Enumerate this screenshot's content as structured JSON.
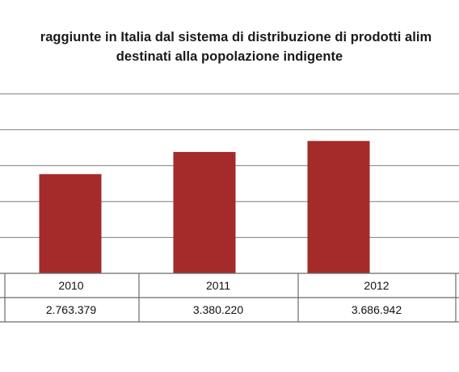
{
  "chart_data": {
    "type": "bar",
    "title_line1": "raggiunte in Italia dal sistema di distribuzione di prodotti alim",
    "title_line2": "destinati alla popolazione indigente",
    "categories": [
      "2010",
      "2011",
      "2012"
    ],
    "values": [
      2763379,
      3380220,
      3686942
    ],
    "value_labels": [
      "2.763.379",
      "3.380.220",
      "3.686.942"
    ],
    "ylim": [
      0,
      5000000
    ],
    "grid": true,
    "bar_color": "#a52a2a",
    "data_table": true
  }
}
